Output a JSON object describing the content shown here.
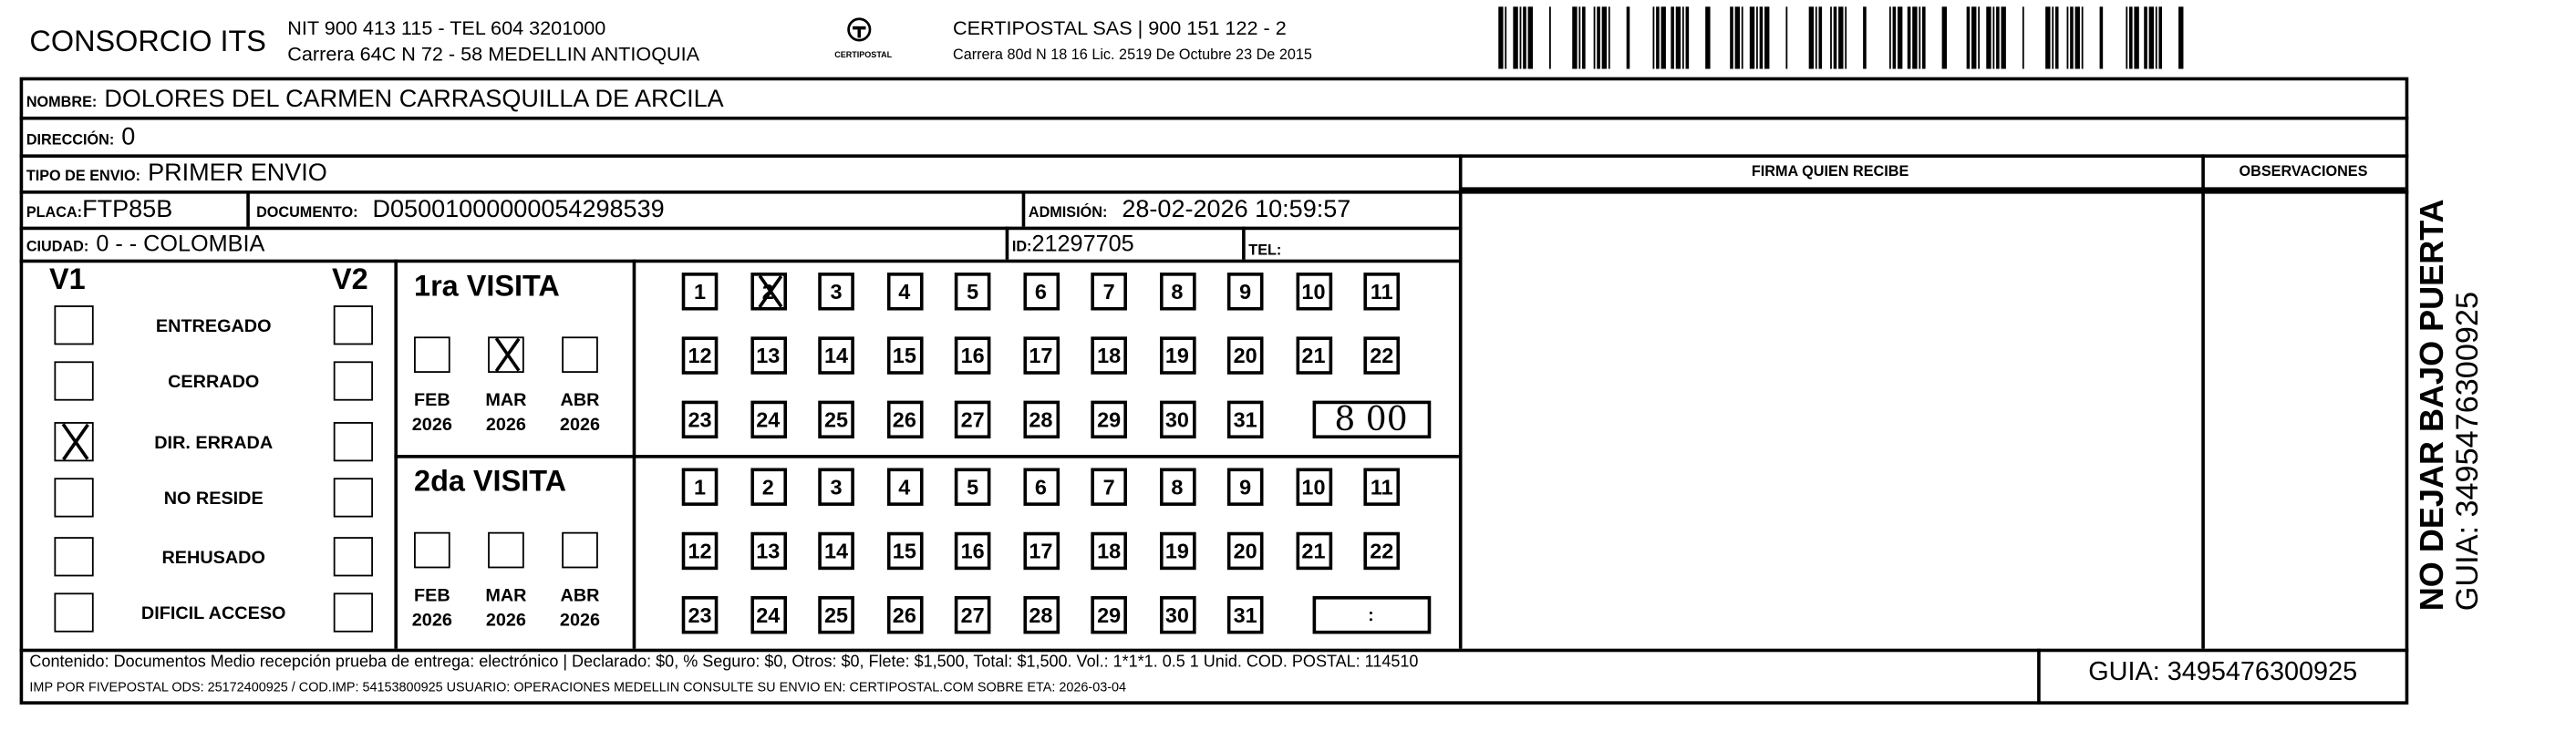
{
  "header": {
    "company": "CONSORCIO ITS",
    "nit": "NIT 900 413 115 - TEL 604 3201000",
    "address": "Carrera 64C N 72 - 58 MEDELLIN ANTIOQUIA",
    "logo_text": "CERTIPOSTAL",
    "carrier": "CERTIPOSTAL SAS | 900 151 122 - 2",
    "carrier_address": "Carrera 80d N 18 16  Lic. 2519 De Octubre 23 De 2015"
  },
  "fields": {
    "nombre_label": "NOMBRE:",
    "nombre": "DOLORES DEL CARMEN CARRASQUILLA DE ARCILA",
    "direccion_label": "DIRECCIÓN:",
    "direccion": "0",
    "tipo_label": "TIPO DE ENVIO:",
    "tipo": "PRIMER ENVIO",
    "placa_label": "PLACA:",
    "placa": "FTP85B",
    "documento_label": "DOCUMENTO:",
    "documento": "D05001000000054298539",
    "admision_label": "ADMISIÓN:",
    "admision": "28-02-2026 10:59:57",
    "ciudad_label": "CIUDAD:",
    "ciudad": "0 -  - COLOMBIA",
    "id_label": "ID:",
    "id": "21297705",
    "tel_label": "TEL:",
    "tel": ""
  },
  "signature": {
    "firma_label": "FIRMA QUIEN RECIBE",
    "observaciones_label": "OBSERVACIONES"
  },
  "status": {
    "v1_label": "V1",
    "v2_label": "V2",
    "items": [
      {
        "label": "ENTREGADO",
        "v1": false,
        "v2": false
      },
      {
        "label": "CERRADO",
        "v1": false,
        "v2": false
      },
      {
        "label": "DIR. ERRADA",
        "v1": true,
        "v2": false
      },
      {
        "label": "NO RESIDE",
        "v1": false,
        "v2": false
      },
      {
        "label": "REHUSADO",
        "v1": false,
        "v2": false
      },
      {
        "label": "DIFICIL ACCESO",
        "v1": false,
        "v2": false
      }
    ]
  },
  "visits": [
    {
      "title": "1ra VISITA",
      "months": [
        {
          "m": "FEB",
          "y": "2026",
          "checked": false
        },
        {
          "m": "MAR",
          "y": "2026",
          "checked": true
        },
        {
          "m": "ABR",
          "y": "2026",
          "checked": false
        }
      ],
      "checked_day": 2,
      "time": "8 00"
    },
    {
      "title": "2da VISITA",
      "months": [
        {
          "m": "FEB",
          "y": "2026",
          "checked": false
        },
        {
          "m": "MAR",
          "y": "2026",
          "checked": false
        },
        {
          "m": "ABR",
          "y": "2026",
          "checked": false
        }
      ],
      "checked_day": null,
      "time": ":"
    }
  ],
  "footer": {
    "line1": "Contenido: Documentos Medio recepción prueba de entrega: electrónico | Declarado: $0, % Seguro: $0, Otros: $0, Flete: $1,500, Total: $1,500. Vol.: 1*1*1. 0.5  1 Unid. COD. POSTAL: 114510",
    "line2": "IMP POR FIVEPOSTAL ODS: 25172400925 / COD.IMP: 54153800925 USUARIO: OPERACIONES MEDELLIN CONSULTE SU ENVIO EN: CERTIPOSTAL.COM SOBRE ETA: 2026-03-04",
    "guia": "GUIA: 3495476300925"
  },
  "side": {
    "warning": "NO DEJAR BAJO PUERTA",
    "guia": "GUIA: 3495476300925"
  }
}
